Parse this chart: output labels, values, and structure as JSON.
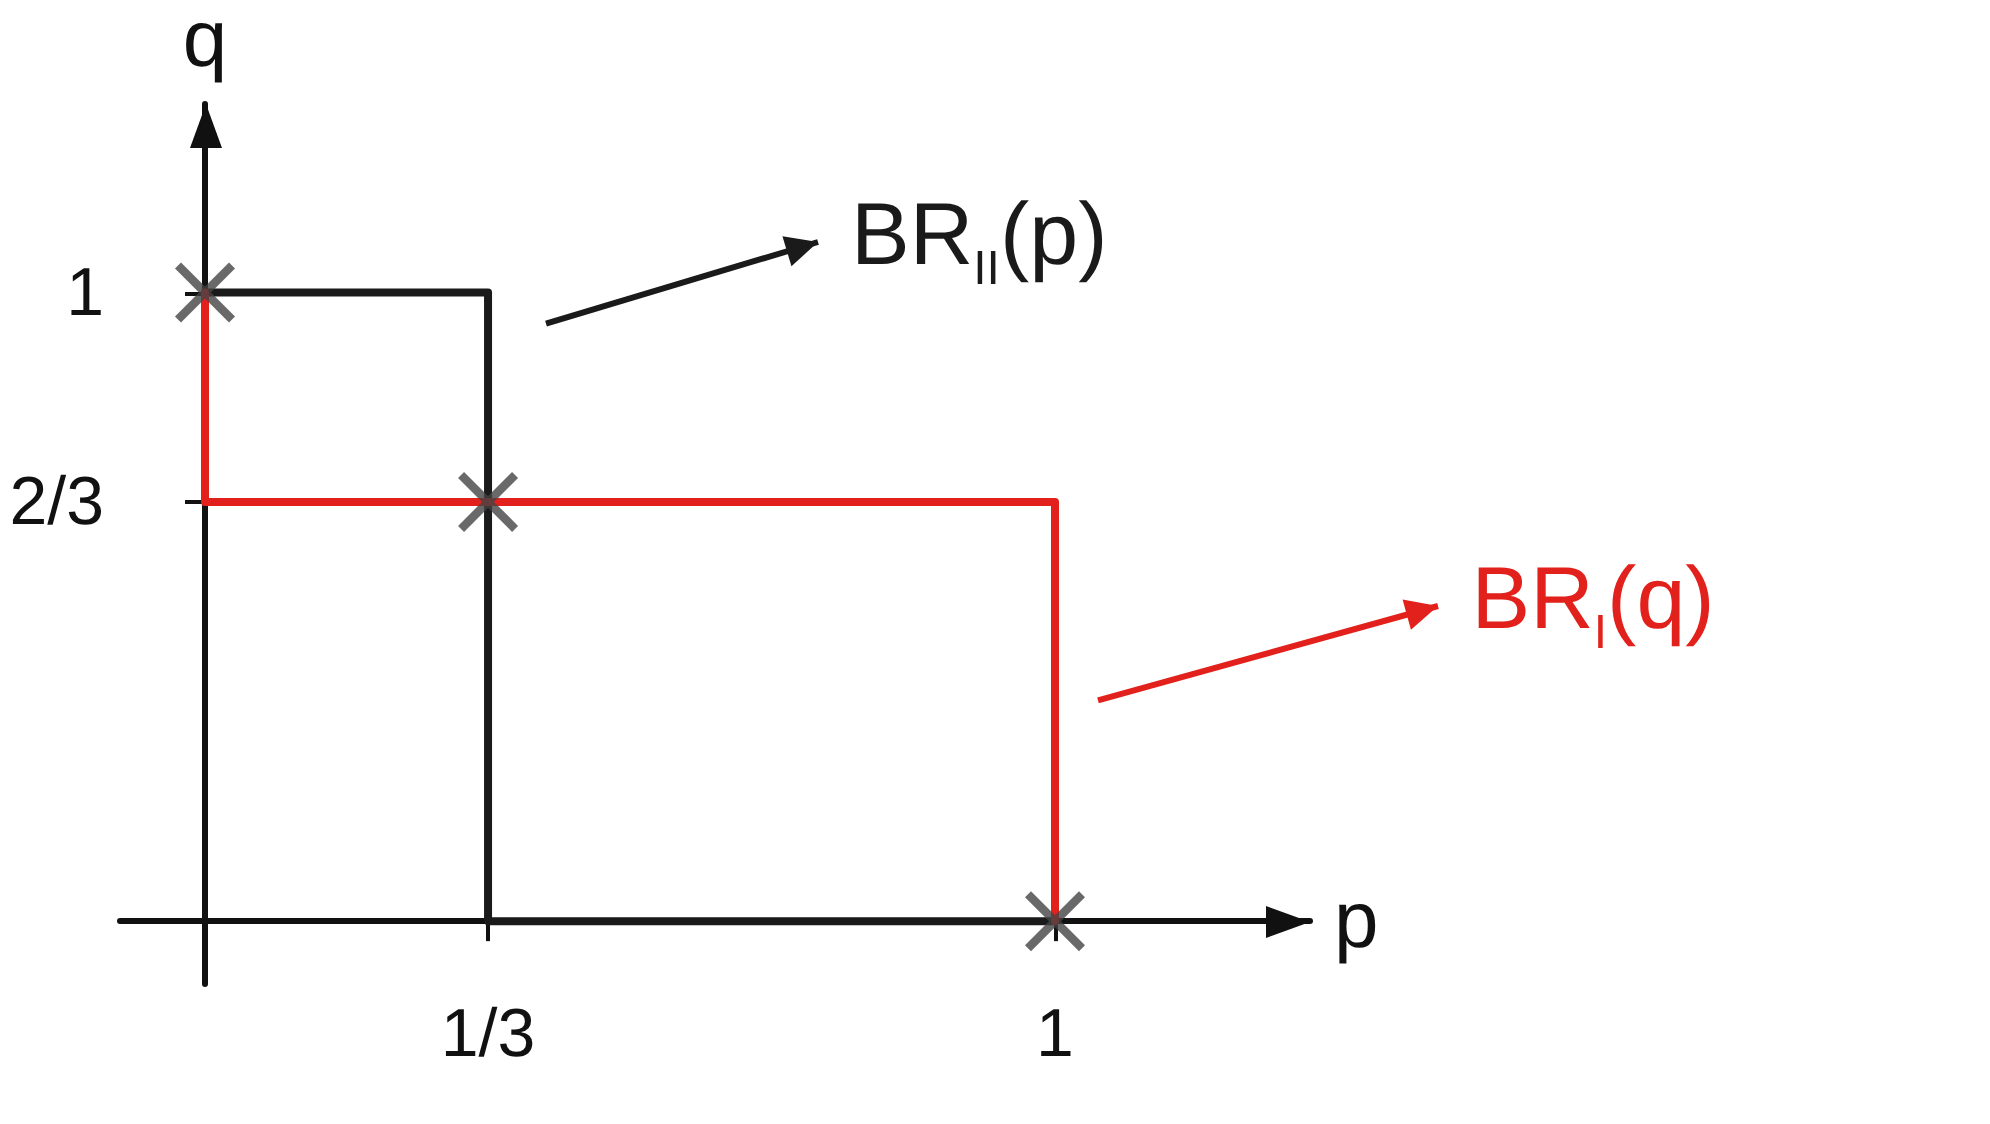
{
  "chart_data": {
    "type": "line",
    "xlabel": "p",
    "ylabel": "q",
    "xlim": [
      -0.1,
      1.3
    ],
    "ylim": [
      -0.1,
      1.3
    ],
    "xticks": [
      {
        "value": 0.333,
        "label": "1/3"
      },
      1
    ],
    "yticks": [
      {
        "value": 0.667,
        "label": "2/3"
      },
      1
    ],
    "grid": false,
    "legend": "right",
    "line_style": "solid",
    "marker": "none",
    "series": [
      {
        "name": "BR$_{II}$(p)",
        "color": "#1a1a1a",
        "x": [
          0,
          0.333,
          0.333,
          1
        ],
        "values": [
          1,
          1,
          0,
          0
        ]
      },
      {
        "name": "BR$_{I}$(q)",
        "color": "#e3211c",
        "x": [
          1,
          1,
          0,
          0
        ],
        "values": [
          0,
          0.667,
          0.667,
          1
        ]
      },
      {
        "type": "scatter",
        "marker": "cross",
        "color": "#444444",
        "x": [
          0,
          0.333,
          1
        ],
        "values": [
          1,
          0.667,
          0
        ]
      }
    ]
  }
}
